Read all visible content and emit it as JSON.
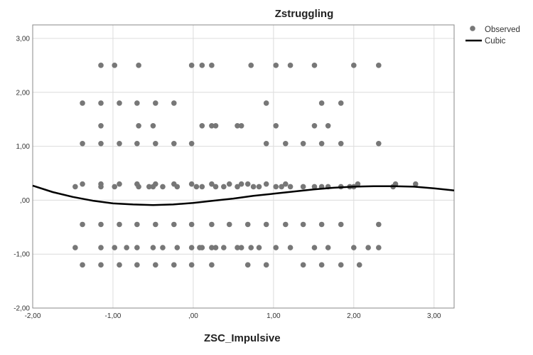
{
  "chart_data": {
    "type": "scatter",
    "title": "Zstruggling",
    "xlabel": "ZSC_Impulsive",
    "ylabel": "",
    "xlim": [
      -2.0,
      3.25
    ],
    "ylim": [
      -2.0,
      3.25
    ],
    "x_ticks": [
      -2.0,
      -1.0,
      0.0,
      1.0,
      2.0,
      3.0
    ],
    "y_ticks": [
      -2.0,
      -1.0,
      0.0,
      1.0,
      2.0,
      3.0
    ],
    "x_tick_labels": [
      "-2,00",
      "-1,00",
      ",00",
      "1,00",
      "2,00",
      "3,00"
    ],
    "y_tick_labels": [
      "-2,00",
      "-1,00",
      ",00",
      "1,00",
      "2,00",
      "3,00"
    ],
    "grid": true,
    "legend": {
      "position": "top-right",
      "entries": [
        "Observed",
        "Cubic"
      ]
    },
    "colors": {
      "points": "#777777",
      "curve": "#000000",
      "grid": "#dcdcdc"
    },
    "series": [
      {
        "name": "Observed",
        "type": "scatter",
        "points": [
          [
            -1.15,
            2.5
          ],
          [
            -0.98,
            2.5
          ],
          [
            -0.68,
            2.5
          ],
          [
            -0.02,
            2.5
          ],
          [
            0.11,
            2.5
          ],
          [
            0.23,
            2.5
          ],
          [
            0.72,
            2.5
          ],
          [
            1.03,
            2.5
          ],
          [
            1.21,
            2.5
          ],
          [
            1.51,
            2.5
          ],
          [
            2.0,
            2.5
          ],
          [
            2.31,
            2.5
          ],
          [
            -1.38,
            1.8
          ],
          [
            -1.15,
            1.8
          ],
          [
            -0.92,
            1.8
          ],
          [
            -0.7,
            1.8
          ],
          [
            -0.47,
            1.8
          ],
          [
            -0.24,
            1.8
          ],
          [
            0.91,
            1.8
          ],
          [
            1.6,
            1.8
          ],
          [
            1.84,
            1.8
          ],
          [
            -1.15,
            1.38
          ],
          [
            -0.68,
            1.38
          ],
          [
            -0.5,
            1.38
          ],
          [
            0.11,
            1.38
          ],
          [
            0.23,
            1.38
          ],
          [
            0.28,
            1.38
          ],
          [
            0.55,
            1.38
          ],
          [
            0.6,
            1.38
          ],
          [
            1.03,
            1.38
          ],
          [
            1.51,
            1.38
          ],
          [
            1.68,
            1.38
          ],
          [
            -1.38,
            1.05
          ],
          [
            -1.15,
            1.05
          ],
          [
            -0.92,
            1.05
          ],
          [
            -0.7,
            1.05
          ],
          [
            -0.47,
            1.05
          ],
          [
            -0.24,
            1.05
          ],
          [
            -0.02,
            1.05
          ],
          [
            0.91,
            1.05
          ],
          [
            1.15,
            1.05
          ],
          [
            1.37,
            1.05
          ],
          [
            1.6,
            1.05
          ],
          [
            1.84,
            1.05
          ],
          [
            2.31,
            1.05
          ],
          [
            -1.47,
            0.25
          ],
          [
            -1.38,
            0.3
          ],
          [
            -1.15,
            0.25
          ],
          [
            -1.15,
            0.3
          ],
          [
            -0.98,
            0.25
          ],
          [
            -0.92,
            0.3
          ],
          [
            -0.7,
            0.3
          ],
          [
            -0.68,
            0.25
          ],
          [
            -0.55,
            0.25
          ],
          [
            -0.5,
            0.25
          ],
          [
            -0.47,
            0.3
          ],
          [
            -0.38,
            0.25
          ],
          [
            -0.24,
            0.3
          ],
          [
            -0.2,
            0.25
          ],
          [
            -0.02,
            0.3
          ],
          [
            0.04,
            0.25
          ],
          [
            0.11,
            0.25
          ],
          [
            0.23,
            0.3
          ],
          [
            0.28,
            0.25
          ],
          [
            0.38,
            0.25
          ],
          [
            0.45,
            0.3
          ],
          [
            0.55,
            0.25
          ],
          [
            0.6,
            0.3
          ],
          [
            0.68,
            0.3
          ],
          [
            0.75,
            0.25
          ],
          [
            0.82,
            0.25
          ],
          [
            0.91,
            0.3
          ],
          [
            1.03,
            0.25
          ],
          [
            1.1,
            0.25
          ],
          [
            1.15,
            0.3
          ],
          [
            1.21,
            0.25
          ],
          [
            1.37,
            0.25
          ],
          [
            1.51,
            0.25
          ],
          [
            1.6,
            0.25
          ],
          [
            1.68,
            0.25
          ],
          [
            1.84,
            0.25
          ],
          [
            1.95,
            0.25
          ],
          [
            2.0,
            0.25
          ],
          [
            2.05,
            0.3
          ],
          [
            2.49,
            0.25
          ],
          [
            2.52,
            0.3
          ],
          [
            2.77,
            0.3
          ],
          [
            -1.38,
            -0.45
          ],
          [
            -1.15,
            -0.45
          ],
          [
            -0.92,
            -0.45
          ],
          [
            -0.7,
            -0.45
          ],
          [
            -0.47,
            -0.45
          ],
          [
            -0.24,
            -0.45
          ],
          [
            -0.02,
            -0.45
          ],
          [
            0.23,
            -0.45
          ],
          [
            0.45,
            -0.45
          ],
          [
            0.68,
            -0.45
          ],
          [
            0.91,
            -0.45
          ],
          [
            1.15,
            -0.45
          ],
          [
            1.37,
            -0.45
          ],
          [
            1.6,
            -0.45
          ],
          [
            1.84,
            -0.45
          ],
          [
            2.31,
            -0.45
          ],
          [
            -1.47,
            -0.88
          ],
          [
            -1.15,
            -0.88
          ],
          [
            -0.98,
            -0.88
          ],
          [
            -0.83,
            -0.88
          ],
          [
            -0.7,
            -0.88
          ],
          [
            -0.5,
            -0.88
          ],
          [
            -0.38,
            -0.88
          ],
          [
            -0.2,
            -0.88
          ],
          [
            -0.02,
            -0.88
          ],
          [
            0.08,
            -0.88
          ],
          [
            0.11,
            -0.88
          ],
          [
            0.23,
            -0.88
          ],
          [
            0.28,
            -0.88
          ],
          [
            0.38,
            -0.88
          ],
          [
            0.55,
            -0.88
          ],
          [
            0.6,
            -0.88
          ],
          [
            0.72,
            -0.88
          ],
          [
            0.82,
            -0.88
          ],
          [
            1.03,
            -0.88
          ],
          [
            1.21,
            -0.88
          ],
          [
            1.51,
            -0.88
          ],
          [
            1.68,
            -0.88
          ],
          [
            2.0,
            -0.88
          ],
          [
            2.18,
            -0.88
          ],
          [
            2.31,
            -0.88
          ],
          [
            -1.38,
            -1.2
          ],
          [
            -1.15,
            -1.2
          ],
          [
            -0.92,
            -1.2
          ],
          [
            -0.7,
            -1.2
          ],
          [
            -0.47,
            -1.2
          ],
          [
            -0.24,
            -1.2
          ],
          [
            -0.02,
            -1.2
          ],
          [
            0.23,
            -1.2
          ],
          [
            0.68,
            -1.2
          ],
          [
            0.91,
            -1.2
          ],
          [
            1.37,
            -1.2
          ],
          [
            1.6,
            -1.2
          ],
          [
            1.84,
            -1.2
          ],
          [
            2.07,
            -1.2
          ]
        ]
      },
      {
        "name": "Cubic",
        "type": "line",
        "fit": "cubic",
        "points": [
          [
            -2.0,
            0.27
          ],
          [
            -1.75,
            0.15
          ],
          [
            -1.5,
            0.06
          ],
          [
            -1.25,
            -0.01
          ],
          [
            -1.0,
            -0.06
          ],
          [
            -0.75,
            -0.08
          ],
          [
            -0.5,
            -0.09
          ],
          [
            -0.25,
            -0.08
          ],
          [
            0.0,
            -0.05
          ],
          [
            0.25,
            -0.01
          ],
          [
            0.5,
            0.03
          ],
          [
            0.75,
            0.08
          ],
          [
            1.0,
            0.12
          ],
          [
            1.25,
            0.16
          ],
          [
            1.5,
            0.2
          ],
          [
            1.75,
            0.23
          ],
          [
            2.0,
            0.25
          ],
          [
            2.25,
            0.26
          ],
          [
            2.5,
            0.26
          ],
          [
            2.75,
            0.25
          ],
          [
            3.0,
            0.22
          ],
          [
            3.25,
            0.18
          ]
        ]
      }
    ]
  }
}
